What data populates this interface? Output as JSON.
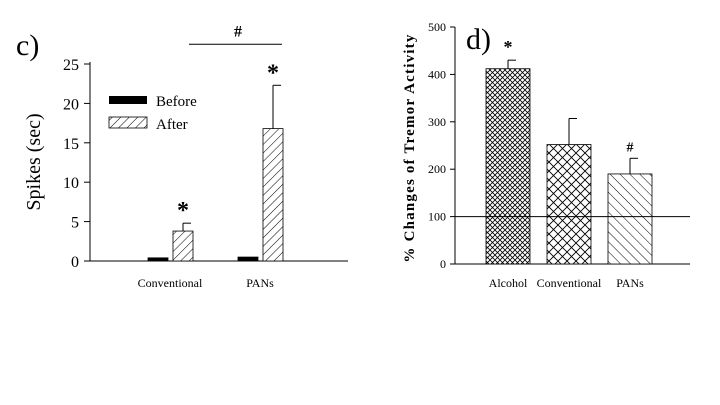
{
  "chart_data": [
    {
      "type": "bar",
      "panel_label": "c)",
      "title": "",
      "xlabel": "",
      "ylabel": "Spikes (sec)",
      "ylim": [
        0,
        25
      ],
      "yticks": [
        0,
        5,
        10,
        15,
        20,
        25
      ],
      "categories": [
        "Conventional",
        "PANs"
      ],
      "series": [
        {
          "name": "Before",
          "fill": "solid",
          "color": "#000000",
          "values": [
            0.4,
            0.5
          ],
          "errors": [
            0.1,
            0.1
          ]
        },
        {
          "name": "After",
          "fill": "diagonal-hatch",
          "color": "#000000",
          "values": [
            3.8,
            16.8
          ],
          "errors": [
            1.0,
            5.5
          ]
        }
      ],
      "annotations": [
        {
          "text": "*",
          "category": "Conventional",
          "series": "After"
        },
        {
          "text": "*",
          "category": "PANs",
          "series": "After"
        },
        {
          "text": "#",
          "between": [
            "Conventional",
            "PANs"
          ],
          "level": 27.5
        }
      ],
      "legend": {
        "entries": [
          "Before",
          "After"
        ],
        "placement": "top-left"
      }
    },
    {
      "type": "bar",
      "panel_label": "d)",
      "title": "",
      "xlabel": "",
      "ylabel": "% Changes of Tremor Activity",
      "ylim": [
        0,
        500
      ],
      "yticks": [
        0,
        100,
        200,
        300,
        400,
        500
      ],
      "categories": [
        "Alcohol",
        "Conventional",
        "PANs"
      ],
      "values": [
        412,
        252,
        190
      ],
      "errors": [
        18,
        55,
        33
      ],
      "fills": [
        "dense-crosshatch",
        "crosshatch",
        "diagonal-hatch"
      ],
      "reference_line": 100,
      "annotations": [
        {
          "text": "*",
          "category": "Alcohol"
        },
        {
          "text": "#",
          "category": "PANs"
        }
      ]
    }
  ]
}
